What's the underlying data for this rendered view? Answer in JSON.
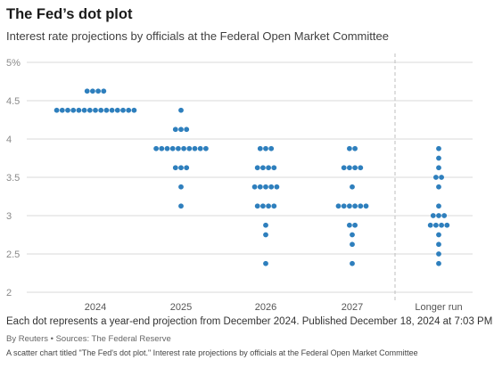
{
  "title": "The Fed’s dot plot",
  "subtitle": "Interest rate projections by officials at the Federal Open Market Committee",
  "note": "Each dot represents a year-end projection from December 2024. Published December 18, 2024 at 7:03 PM GMT",
  "byline": "By Reuters • Sources: The Federal Reserve",
  "alt_text": "A scatter chart titled \"The Fed's dot plot.\" Interest rate projections by officials at the Federal Open Market Committee",
  "colors": {
    "dot": "#2e7fbd",
    "grid": "#d9d9d9",
    "divider": "#bfbfbf"
  },
  "chart_data": {
    "type": "scatter",
    "title": "The Fed’s dot plot",
    "subtitle": "Interest rate projections by officials at the Federal Open Market Committee",
    "xlabel": "",
    "ylabel": "",
    "ylim": [
      2,
      5
    ],
    "yticks": [
      2,
      2.5,
      3,
      3.5,
      4,
      4.5,
      5
    ],
    "ytick_labels": [
      "2",
      "2.5",
      "3",
      "3.5",
      "4",
      "4.5",
      "5%"
    ],
    "grid": true,
    "categories": [
      "2024",
      "2025",
      "2026",
      "2027",
      "Longer run"
    ],
    "groups": [
      {
        "category": "2024",
        "levels": [
          {
            "rate": 4.625,
            "count": 4
          },
          {
            "rate": 4.375,
            "count": 15
          }
        ]
      },
      {
        "category": "2025",
        "levels": [
          {
            "rate": 4.375,
            "count": 1
          },
          {
            "rate": 4.125,
            "count": 3
          },
          {
            "rate": 3.875,
            "count": 10
          },
          {
            "rate": 3.625,
            "count": 3
          },
          {
            "rate": 3.375,
            "count": 1
          },
          {
            "rate": 3.125,
            "count": 1
          }
        ]
      },
      {
        "category": "2026",
        "levels": [
          {
            "rate": 3.875,
            "count": 3
          },
          {
            "rate": 3.625,
            "count": 4
          },
          {
            "rate": 3.375,
            "count": 5
          },
          {
            "rate": 3.125,
            "count": 4
          },
          {
            "rate": 2.875,
            "count": 1
          },
          {
            "rate": 2.75,
            "count": 1
          },
          {
            "rate": 2.375,
            "count": 1
          }
        ]
      },
      {
        "category": "2027",
        "levels": [
          {
            "rate": 3.875,
            "count": 2
          },
          {
            "rate": 3.625,
            "count": 4
          },
          {
            "rate": 3.375,
            "count": 1
          },
          {
            "rate": 3.125,
            "count": 6
          },
          {
            "rate": 2.875,
            "count": 2
          },
          {
            "rate": 2.75,
            "count": 1
          },
          {
            "rate": 2.625,
            "count": 1
          },
          {
            "rate": 2.375,
            "count": 1
          }
        ]
      },
      {
        "category": "Longer run",
        "levels": [
          {
            "rate": 3.875,
            "count": 1
          },
          {
            "rate": 3.75,
            "count": 1
          },
          {
            "rate": 3.625,
            "count": 1
          },
          {
            "rate": 3.5,
            "count": 2
          },
          {
            "rate": 3.375,
            "count": 1
          },
          {
            "rate": 3.125,
            "count": 1
          },
          {
            "rate": 3.0,
            "count": 3
          },
          {
            "rate": 2.875,
            "count": 4
          },
          {
            "rate": 2.75,
            "count": 1
          },
          {
            "rate": 2.625,
            "count": 1
          },
          {
            "rate": 2.5,
            "count": 1
          },
          {
            "rate": 2.375,
            "count": 1
          }
        ]
      }
    ],
    "divider_before": "Longer run"
  }
}
